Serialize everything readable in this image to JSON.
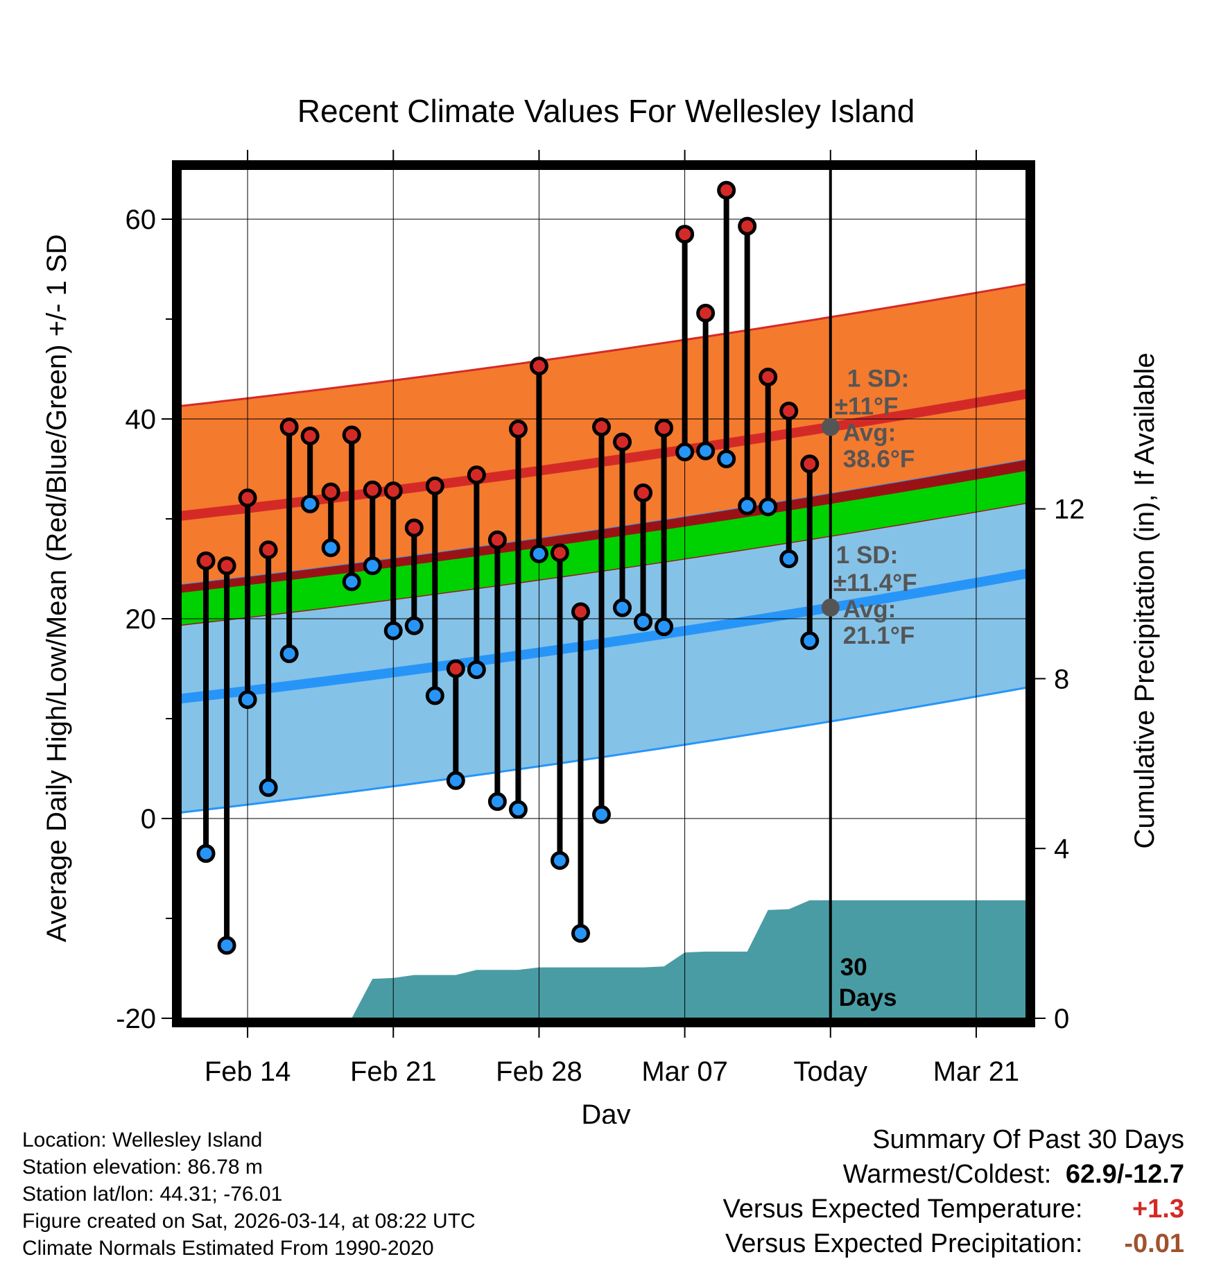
{
  "chart_data": {
    "type": "climate-range",
    "title": "Recent Climate Values For Wellesley Island",
    "xlabel": "Day",
    "ylabel": "Average Daily High/Low/Mean (Red/Blue/Green) +/- 1 SD",
    "y2label": "Cumulative Precipitation (in), If Available",
    "ylim": [
      -20,
      65
    ],
    "yticks": [
      "-20",
      "0",
      "20",
      "40",
      "60"
    ],
    "y2lim": [
      0,
      20
    ],
    "y2ticks": [
      "0",
      "4",
      "8",
      "12"
    ],
    "xlim": [
      -3.2,
      37.4
    ],
    "xticks": [
      {
        "day": 0,
        "label": "Feb 14"
      },
      {
        "day": 7,
        "label": "Feb 21"
      },
      {
        "day": 14,
        "label": "Feb 28"
      },
      {
        "day": 21,
        "label": "Mar 07"
      },
      {
        "day": 28,
        "label": "Today"
      },
      {
        "day": 35,
        "label": "Mar 21"
      }
    ],
    "today_day": 28,
    "normals": {
      "high_mean": {
        "start": 30.3,
        "end": 42.5
      },
      "high_sd": 11,
      "low_mean": {
        "start": 12.0,
        "end": 24.5
      },
      "low_sd": 11.4,
      "mean_mean": {
        "start": 21.0,
        "end": 33.2
      }
    },
    "daily": [
      {
        "day": -2,
        "high": 25.8,
        "low": -3.5
      },
      {
        "day": -1,
        "high": 25.3,
        "low": -12.7
      },
      {
        "day": 0,
        "high": 32.1,
        "low": 11.9
      },
      {
        "day": 1,
        "high": 26.9,
        "low": 3.1
      },
      {
        "day": 2,
        "high": 39.2,
        "low": 16.5
      },
      {
        "day": 3,
        "high": 38.3,
        "low": 31.5
      },
      {
        "day": 4,
        "high": 32.7,
        "low": 27.1
      },
      {
        "day": 5,
        "high": 38.4,
        "low": 23.7
      },
      {
        "day": 6,
        "high": 32.9,
        "low": 25.3
      },
      {
        "day": 7,
        "high": 32.8,
        "low": 18.8
      },
      {
        "day": 8,
        "high": 29.1,
        "low": 19.3
      },
      {
        "day": 9,
        "high": 33.3,
        "low": 12.3
      },
      {
        "day": 10,
        "high": 15.0,
        "low": 3.8
      },
      {
        "day": 11,
        "high": 34.4,
        "low": 14.9
      },
      {
        "day": 12,
        "high": 27.9,
        "low": 1.7
      },
      {
        "day": 13,
        "high": 39.0,
        "low": 0.9
      },
      {
        "day": 14,
        "high": 45.3,
        "low": 26.5
      },
      {
        "day": 15,
        "high": 26.6,
        "low": -4.2
      },
      {
        "day": 16,
        "high": 20.7,
        "low": -11.5
      },
      {
        "day": 17,
        "high": 39.2,
        "low": 0.4
      },
      {
        "day": 18,
        "high": 37.7,
        "low": 21.1
      },
      {
        "day": 19,
        "high": 32.6,
        "low": 19.7
      },
      {
        "day": 20,
        "high": 39.1,
        "low": 19.2
      },
      {
        "day": 21,
        "high": 58.5,
        "low": 36.7
      },
      {
        "day": 22,
        "high": 50.6,
        "low": 36.8
      },
      {
        "day": 23,
        "high": 62.9,
        "low": 36.0
      },
      {
        "day": 24,
        "high": 59.3,
        "low": 31.3
      },
      {
        "day": 25,
        "high": 44.2,
        "low": 31.2
      },
      {
        "day": 26,
        "high": 40.8,
        "low": 26.0
      },
      {
        "day": 27,
        "high": 35.5,
        "low": 17.8
      }
    ],
    "precipitation_cumulative": [
      {
        "day": 5.0,
        "value": 0.0
      },
      {
        "day": 6.0,
        "value": 0.93
      },
      {
        "day": 7.0,
        "value": 0.95
      },
      {
        "day": 8.0,
        "value": 1.02
      },
      {
        "day": 10.0,
        "value": 1.02
      },
      {
        "day": 11.0,
        "value": 1.14
      },
      {
        "day": 13.0,
        "value": 1.14
      },
      {
        "day": 14.0,
        "value": 1.2
      },
      {
        "day": 19.0,
        "value": 1.2
      },
      {
        "day": 20.0,
        "value": 1.22
      },
      {
        "day": 21.0,
        "value": 1.55
      },
      {
        "day": 22.0,
        "value": 1.57
      },
      {
        "day": 24.0,
        "value": 1.57
      },
      {
        "day": 25.0,
        "value": 2.55
      },
      {
        "day": 26.0,
        "value": 2.57
      },
      {
        "day": 27.0,
        "value": 2.78
      },
      {
        "day": 28.0,
        "value": 2.78
      },
      {
        "day": 37.4,
        "value": 2.78
      }
    ],
    "colors": {
      "high_band": "#f47a2e",
      "high_line": "#d42a27",
      "low_band": "#85c2e8",
      "low_line": "#2795f7",
      "mean_band": "#9b1216",
      "mean_line": "#00d100",
      "precip": "#4a9ca4",
      "high_dot": "#d42a27",
      "low_dot": "#2795f7"
    },
    "annotations": {
      "high_sd_label": "1 SD:",
      "high_sd_value": "±11°F",
      "high_avg_label": "Avg:",
      "high_avg_value": "38.6°F",
      "low_sd_label": "1 SD:",
      "low_sd_value": "±11.4°F",
      "low_avg_label": "Avg:",
      "low_avg_value": "21.1°F",
      "days_number": "30",
      "days_word": "Days"
    }
  },
  "footer": {
    "location": "Location: Wellesley Island",
    "elevation": "Station elevation: 86.78 m",
    "latlon": "Station lat/lon: 44.31; -76.01",
    "created": "Figure created on Sat, 2026-03-14, at 08:22 UTC",
    "normals": "Climate Normals Estimated From 1990-2020"
  },
  "summary": {
    "heading": "Summary Of Past 30 Days",
    "warmest_label": "Warmest/Coldest:",
    "warmest_value": "62.9/-12.7",
    "temp_label": "Versus Expected Temperature:",
    "temp_value": "+1.3",
    "temp_color": "#d42a27",
    "precip_label": "Versus Expected Precipitation:",
    "precip_value": "-0.01",
    "precip_color": "#a0522d"
  }
}
